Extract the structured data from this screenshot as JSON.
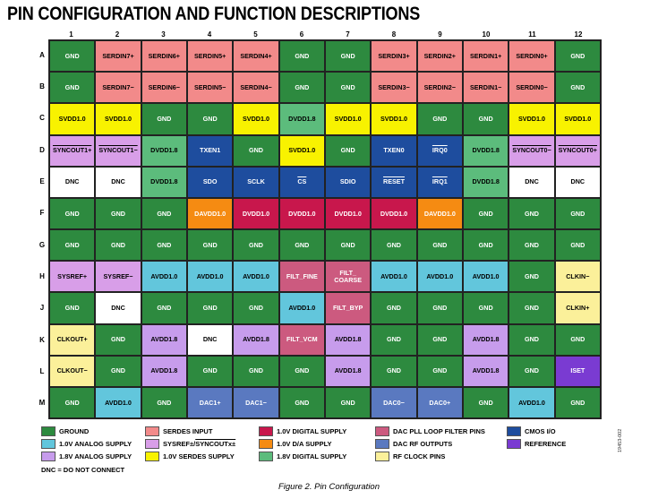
{
  "title": "PIN CONFIGURATION AND FUNCTION DESCRIPTIONS",
  "columns": [
    "1",
    "2",
    "3",
    "4",
    "5",
    "6",
    "7",
    "8",
    "9",
    "10",
    "11",
    "12"
  ],
  "rows_labels": [
    "A",
    "B",
    "C",
    "D",
    "E",
    "F",
    "G",
    "H",
    "J",
    "K",
    "L",
    "M"
  ],
  "grid": {
    "rows": [
      [
        [
          "GND",
          "gnd"
        ],
        [
          "SERDIN7+",
          "serdes"
        ],
        [
          "SERDIN6+",
          "serdes"
        ],
        [
          "SERDIN5+",
          "serdes"
        ],
        [
          "SERDIN4+",
          "serdes"
        ],
        [
          "GND",
          "gnd"
        ],
        [
          "GND",
          "gnd"
        ],
        [
          "SERDIN3+",
          "serdes"
        ],
        [
          "SERDIN2+",
          "serdes"
        ],
        [
          "SERDIN1+",
          "serdes"
        ],
        [
          "SERDIN0+",
          "serdes"
        ],
        [
          "GND",
          "gnd"
        ]
      ],
      [
        [
          "GND",
          "gnd"
        ],
        [
          "SERDIN7−",
          "serdes"
        ],
        [
          "SERDIN6−",
          "serdes"
        ],
        [
          "SERDIN5−",
          "serdes"
        ],
        [
          "SERDIN4−",
          "serdes"
        ],
        [
          "GND",
          "gnd"
        ],
        [
          "GND",
          "gnd"
        ],
        [
          "SERDIN3−",
          "serdes"
        ],
        [
          "SERDIN2−",
          "serdes"
        ],
        [
          "SERDIN1−",
          "serdes"
        ],
        [
          "SERDIN0−",
          "serdes"
        ],
        [
          "GND",
          "gnd"
        ]
      ],
      [
        [
          "SVDD1.0",
          "serdsup"
        ],
        [
          "SVDD1.0",
          "serdsup"
        ],
        [
          "GND",
          "gnd"
        ],
        [
          "GND",
          "gnd"
        ],
        [
          "SVDD1.0",
          "serdsup"
        ],
        [
          "DVDD1.8",
          "dig18"
        ],
        [
          "SVDD1.0",
          "serdsup"
        ],
        [
          "SVDD1.0",
          "serdsup"
        ],
        [
          "GND",
          "gnd"
        ],
        [
          "GND",
          "gnd"
        ],
        [
          "SVDD1.0",
          "serdsup"
        ],
        [
          "SVDD1.0",
          "serdsup"
        ]
      ],
      [
        [
          "SYNCOUT1+",
          "sysref over"
        ],
        [
          "SYNCOUT1−",
          "sysref over"
        ],
        [
          "DVDD1.8",
          "dig18"
        ],
        [
          "TXEN1",
          "cmos"
        ],
        [
          "GND",
          "gnd"
        ],
        [
          "SVDD1.0",
          "serdsup"
        ],
        [
          "GND",
          "gnd"
        ],
        [
          "TXEN0",
          "cmos"
        ],
        [
          "IRQ0",
          "cmos over"
        ],
        [
          "DVDD1.8",
          "dig18"
        ],
        [
          "SYNCOUT0−",
          "sysref over"
        ],
        [
          "SYNCOUT0+",
          "sysref over"
        ]
      ],
      [
        [
          "DNC",
          "dnc"
        ],
        [
          "DNC",
          "dnc"
        ],
        [
          "DVDD1.8",
          "dig18"
        ],
        [
          "SDO",
          "cmos"
        ],
        [
          "SCLK",
          "cmos"
        ],
        [
          "CS",
          "cmos over"
        ],
        [
          "SDIO",
          "cmos"
        ],
        [
          "RESET",
          "cmos over"
        ],
        [
          "IRQ1",
          "cmos over"
        ],
        [
          "DVDD1.8",
          "dig18"
        ],
        [
          "DNC",
          "dnc"
        ],
        [
          "DNC",
          "dnc"
        ]
      ],
      [
        [
          "GND",
          "gnd"
        ],
        [
          "GND",
          "gnd"
        ],
        [
          "GND",
          "gnd"
        ],
        [
          "DAVDD1.0",
          "da"
        ],
        [
          "DVDD1.0",
          "dig1"
        ],
        [
          "DVDD1.0",
          "dig1"
        ],
        [
          "DVDD1.0",
          "dig1"
        ],
        [
          "DVDD1.0",
          "dig1"
        ],
        [
          "DAVDD1.0",
          "da"
        ],
        [
          "GND",
          "gnd"
        ],
        [
          "GND",
          "gnd"
        ],
        [
          "GND",
          "gnd"
        ]
      ],
      [
        [
          "GND",
          "gnd"
        ],
        [
          "GND",
          "gnd"
        ],
        [
          "GND",
          "gnd"
        ],
        [
          "GND",
          "gnd"
        ],
        [
          "GND",
          "gnd"
        ],
        [
          "GND",
          "gnd"
        ],
        [
          "GND",
          "gnd"
        ],
        [
          "GND",
          "gnd"
        ],
        [
          "GND",
          "gnd"
        ],
        [
          "GND",
          "gnd"
        ],
        [
          "GND",
          "gnd"
        ],
        [
          "GND",
          "gnd"
        ]
      ],
      [
        [
          "SYSREF+",
          "sysref"
        ],
        [
          "SYSREF−",
          "sysref"
        ],
        [
          "AVDD1.0",
          "ana1"
        ],
        [
          "AVDD1.0",
          "ana1"
        ],
        [
          "AVDD1.0",
          "ana1"
        ],
        [
          "FILT_FINE",
          "pll"
        ],
        [
          "FILT_\nCOARSE",
          "pll"
        ],
        [
          "AVDD1.0",
          "ana1"
        ],
        [
          "AVDD1.0",
          "ana1"
        ],
        [
          "AVDD1.0",
          "ana1"
        ],
        [
          "GND",
          "gnd"
        ],
        [
          "CLKIN−",
          "rfclk"
        ]
      ],
      [
        [
          "GND",
          "gnd"
        ],
        [
          "DNC",
          "dnc"
        ],
        [
          "GND",
          "gnd"
        ],
        [
          "GND",
          "gnd"
        ],
        [
          "GND",
          "gnd"
        ],
        [
          "AVDD1.0",
          "ana1"
        ],
        [
          "FILT_BYP",
          "pll"
        ],
        [
          "GND",
          "gnd"
        ],
        [
          "GND",
          "gnd"
        ],
        [
          "GND",
          "gnd"
        ],
        [
          "GND",
          "gnd"
        ],
        [
          "CLKIN+",
          "rfclk"
        ]
      ],
      [
        [
          "CLKOUT+",
          "rfclk"
        ],
        [
          "GND",
          "gnd"
        ],
        [
          "AVDD1.8",
          "ana18"
        ],
        [
          "DNC",
          "dnc"
        ],
        [
          "AVDD1.8",
          "ana18"
        ],
        [
          "FILT_VCM",
          "pll"
        ],
        [
          "AVDD1.8",
          "ana18"
        ],
        [
          "GND",
          "gnd"
        ],
        [
          "GND",
          "gnd"
        ],
        [
          "AVDD1.8",
          "ana18"
        ],
        [
          "GND",
          "gnd"
        ],
        [
          "GND",
          "gnd"
        ]
      ],
      [
        [
          "CLKOUT−",
          "rfclk"
        ],
        [
          "GND",
          "gnd"
        ],
        [
          "AVDD1.8",
          "ana18"
        ],
        [
          "GND",
          "gnd"
        ],
        [
          "GND",
          "gnd"
        ],
        [
          "GND",
          "gnd"
        ],
        [
          "AVDD1.8",
          "ana18"
        ],
        [
          "GND",
          "gnd"
        ],
        [
          "GND",
          "gnd"
        ],
        [
          "AVDD1.8",
          "ana18"
        ],
        [
          "GND",
          "gnd"
        ],
        [
          "ISET",
          "ref"
        ]
      ],
      [
        [
          "GND",
          "gnd"
        ],
        [
          "AVDD1.0",
          "ana1"
        ],
        [
          "GND",
          "gnd"
        ],
        [
          "DAC1+",
          "rfout"
        ],
        [
          "DAC1−",
          "rfout"
        ],
        [
          "GND",
          "gnd"
        ],
        [
          "GND",
          "gnd"
        ],
        [
          "DAC0−",
          "rfout"
        ],
        [
          "DAC0+",
          "rfout"
        ],
        [
          "GND",
          "gnd"
        ],
        [
          "AVDD1.0",
          "ana1"
        ],
        [
          "GND",
          "gnd"
        ]
      ]
    ]
  },
  "legend": [
    {
      "label": "GROUND",
      "class": "gnd"
    },
    {
      "label": "SERDES INPUT",
      "class": "serdes"
    },
    {
      "label": "1.0V DIGITAL SUPPLY",
      "class": "dig1"
    },
    {
      "label": "DAC PLL LOOP FILTER PINS",
      "class": "pll"
    },
    {
      "label": "CMOS I/O",
      "class": "cmos"
    },
    {
      "label": "1.0V ANALOG SUPPLY",
      "class": "ana1"
    },
    {
      "label": "SYSREF±/SYNCOUTx±",
      "class": "sysref"
    },
    {
      "label": "1.0V D/A SUPPLY",
      "class": "da"
    },
    {
      "label": "DAC RF OUTPUTS",
      "class": "rfout"
    },
    {
      "label": "REFERENCE",
      "class": "ref"
    },
    {
      "label": "1.8V ANALOG SUPPLY",
      "class": "ana18"
    },
    {
      "label": "1.0V SERDES SUPPLY",
      "class": "serdsup"
    },
    {
      "label": "1.8V DIGITAL SUPPLY",
      "class": "dig18"
    },
    {
      "label": "RF CLOCK PINS",
      "class": "rfclk"
    }
  ],
  "legend_sysref_plain": "SYSREF±/",
  "legend_sysref_over": "SYNCOUTx±",
  "dnc_note": "DNC = DO NOT CONNECT",
  "side_id": "19453-002",
  "caption": "Figure 2. Pin Configuration",
  "colors": {
    "gnd": "#2d8a3f",
    "serdes": "#f28a8a",
    "dig1": "#c8174c",
    "pll": "#cc5a7f",
    "cmos": "#1e4d9e",
    "ana1": "#62c6dc",
    "sysref": "#d89ee8",
    "da": "#f58b12",
    "rfout": "#5a79c0",
    "ref": "#7a3bd2",
    "ana18": "#c79cec",
    "serdsup": "#f8f200",
    "dig18": "#5cbc7c",
    "rfclk": "#fbf09a",
    "dnc": "#ffffff"
  }
}
